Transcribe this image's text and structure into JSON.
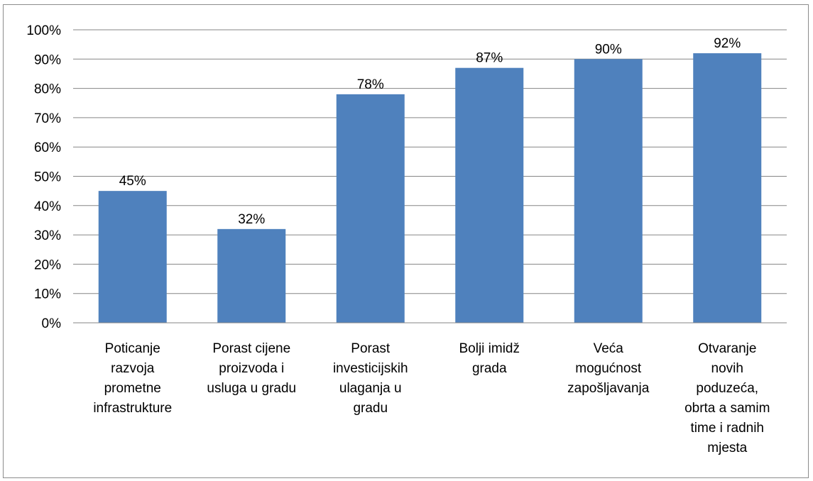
{
  "chart_data": {
    "type": "bar",
    "categories": [
      [
        "Poticanje",
        "razvoja",
        "prometne",
        "infrastrukture"
      ],
      [
        "Porast cijene",
        "proizvoda i",
        "usluga u gradu"
      ],
      [
        "Porast",
        "investicijskih",
        "ulaganja u",
        "gradu"
      ],
      [
        "Bolji imidž",
        "grada"
      ],
      [
        "Veća",
        "mogućnost",
        "zapošljavanja"
      ],
      [
        "Otvaranje",
        "novih",
        "poduzeća,",
        "obrta a samim",
        "time i radnih",
        "mjesta"
      ]
    ],
    "values": [
      45,
      32,
      78,
      87,
      90,
      92
    ],
    "data_labels": [
      "45%",
      "32%",
      "78%",
      "87%",
      "90%",
      "92%"
    ],
    "y_ticks": [
      "0%",
      "10%",
      "20%",
      "30%",
      "40%",
      "50%",
      "60%",
      "70%",
      "80%",
      "90%",
      "100%"
    ],
    "ylim": [
      0,
      100
    ],
    "grid": true,
    "legend": "none",
    "colors": {
      "bar": "#4f81bd",
      "grid": "#868686",
      "axis": "#868686"
    }
  }
}
